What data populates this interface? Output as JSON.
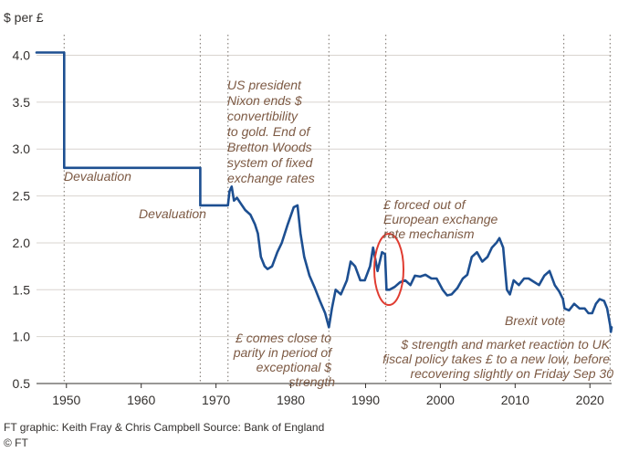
{
  "chart_data": {
    "type": "line",
    "ylabel": "$ per £",
    "xlim": [
      1946,
      2022.9
    ],
    "ylim": [
      0.5,
      4.2
    ],
    "x_ticks": [
      1950,
      1960,
      1970,
      1980,
      1990,
      2000,
      2010,
      2020
    ],
    "y_ticks": [
      0.5,
      1.0,
      1.5,
      2.0,
      2.5,
      3.0,
      3.5,
      4.0
    ],
    "grid": "horizontal gridlines; dotted vertical event lines",
    "series_color": "#1d4f91",
    "event_line_color": "#8c8680",
    "annotation_color": "#7d5a44",
    "highlight_circle_color": "#e03c31",
    "event_years": [
      1949.7,
      1967.9,
      1971.6,
      1985.1,
      1992.7,
      2016.5,
      2022.7
    ],
    "series": [
      {
        "x": [
          1946,
          1949.7,
          1949.7,
          1967.9,
          1967.9,
          1971.6,
          1971.8,
          1972.1,
          1972.4,
          1972.8,
          1973.3,
          1973.9,
          1974.6,
          1975.2,
          1975.6,
          1976.0,
          1976.5,
          1976.9,
          1977.5,
          1978.2,
          1978.8,
          1979.6,
          1980.4,
          1980.9,
          1981.3,
          1981.8,
          1982.5,
          1983.2,
          1983.9,
          1984.6,
          1985.1,
          1985.5,
          1986.0,
          1986.7,
          1987.5,
          1988.0,
          1988.6,
          1989.3,
          1989.9,
          1990.6,
          1991.0,
          1991.6,
          1992.2,
          1992.6,
          1992.8,
          1993.2,
          1993.9,
          1994.6,
          1995.3,
          1996.0,
          1996.6,
          1997.3,
          1998.0,
          1998.8,
          1999.5,
          2000.3,
          2000.9,
          2001.5,
          2002.3,
          2003.0,
          2003.6,
          2004.2,
          2004.9,
          2005.6,
          2006.3,
          2006.9,
          2007.5,
          2007.9,
          2008.4,
          2008.9,
          2009.3,
          2009.8,
          2010.5,
          2011.2,
          2011.8,
          2012.6,
          2013.2,
          2013.9,
          2014.6,
          2015.3,
          2015.9,
          2016.4,
          2016.6,
          2017.2,
          2017.9,
          2018.6,
          2019.3,
          2019.8,
          2020.3,
          2020.8,
          2021.3,
          2021.9,
          2022.3,
          2022.7,
          2022.8,
          2022.9
        ],
        "y": [
          4.03,
          4.03,
          2.8,
          2.8,
          2.4,
          2.4,
          2.55,
          2.6,
          2.45,
          2.48,
          2.42,
          2.35,
          2.3,
          2.2,
          2.1,
          1.85,
          1.75,
          1.72,
          1.75,
          1.9,
          2.0,
          2.2,
          2.38,
          2.4,
          2.1,
          1.85,
          1.65,
          1.52,
          1.38,
          1.25,
          1.1,
          1.3,
          1.5,
          1.45,
          1.6,
          1.8,
          1.75,
          1.6,
          1.6,
          1.75,
          1.95,
          1.7,
          1.9,
          1.88,
          1.5,
          1.5,
          1.53,
          1.58,
          1.6,
          1.55,
          1.65,
          1.64,
          1.66,
          1.62,
          1.62,
          1.5,
          1.44,
          1.45,
          1.52,
          1.62,
          1.66,
          1.85,
          1.9,
          1.8,
          1.85,
          1.95,
          2.0,
          2.05,
          1.95,
          1.5,
          1.45,
          1.6,
          1.55,
          1.62,
          1.62,
          1.58,
          1.55,
          1.65,
          1.7,
          1.55,
          1.48,
          1.4,
          1.3,
          1.28,
          1.35,
          1.3,
          1.3,
          1.25,
          1.25,
          1.35,
          1.4,
          1.38,
          1.3,
          1.12,
          1.05,
          1.1
        ]
      }
    ],
    "annotations": {
      "devaluation_1949": [
        "Devaluation"
      ],
      "devaluation_1967": [
        "Devaluation"
      ],
      "nixon": [
        "US president",
        "Nixon ends $",
        "convertibility",
        "to gold. End of",
        "Bretton Woods",
        "system of fixed",
        "exchange rates"
      ],
      "erm": [
        "£ forced out of",
        "European exchange",
        "rate mechanism"
      ],
      "parity": [
        "£ comes close to",
        "parity in period of",
        "exceptional $",
        "strength"
      ],
      "brexit": [
        "Brexit vote"
      ],
      "fiscal": [
        "$ strength and market reaction to UK",
        "fiscal policy takes £ to a new low, before",
        "recovering slightly on Friday Sep 30"
      ]
    }
  },
  "footer": {
    "credit": "FT graphic: Keith Fray & Chris Campbell   Source: Bank of England",
    "copyright": "© FT"
  }
}
